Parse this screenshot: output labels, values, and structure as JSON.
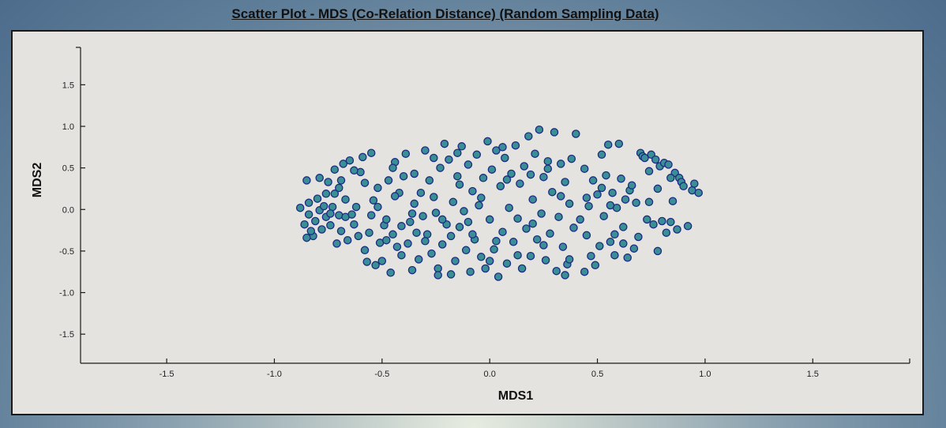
{
  "chart_data": {
    "type": "scatter",
    "title": "Scatter Plot - MDS (Co-Relation Distance) (Random Sampling Data)",
    "xlabel": "MDS1",
    "ylabel": "MDS2",
    "xlim": [
      -1.9,
      1.95
    ],
    "ylim": [
      -1.85,
      1.95
    ],
    "xticks": [
      -1.5,
      -1.0,
      -0.5,
      0.0,
      0.5,
      1.0,
      1.5
    ],
    "yticks": [
      1.5,
      1.0,
      0.5,
      0.0,
      -0.5,
      -1.0,
      -1.5
    ],
    "grid": false,
    "colors": {
      "marker_fill": "#3a8f96",
      "marker_edge": "#1c2a80"
    },
    "series": [
      {
        "points": [
          [
            -0.88,
            0.02
          ],
          [
            -0.86,
            -0.18
          ],
          [
            -0.85,
            0.35
          ],
          [
            -0.84,
            0.08
          ],
          [
            -0.84,
            -0.06
          ],
          [
            -0.82,
            -0.32
          ],
          [
            -0.81,
            -0.14
          ],
          [
            -0.8,
            0.13
          ],
          [
            -0.79,
            0.38
          ],
          [
            -0.79,
            -0.01
          ],
          [
            -0.78,
            -0.24
          ],
          [
            -0.77,
            0.04
          ],
          [
            -0.76,
            -0.09
          ],
          [
            -0.75,
            0.33
          ],
          [
            -0.74,
            -0.19
          ],
          [
            -0.73,
            0.03
          ],
          [
            -0.72,
            0.48
          ],
          [
            -0.72,
            0.19
          ],
          [
            -0.71,
            -0.41
          ],
          [
            -0.7,
            -0.07
          ],
          [
            -0.69,
            0.35
          ],
          [
            -0.69,
            -0.26
          ],
          [
            -0.68,
            0.55
          ],
          [
            -0.67,
            0.12
          ],
          [
            -0.67,
            -0.09
          ],
          [
            -0.66,
            -0.37
          ],
          [
            -0.65,
            0.59
          ],
          [
            -0.64,
            -0.06
          ],
          [
            -0.62,
            0.03
          ],
          [
            -0.61,
            -0.32
          ],
          [
            -0.6,
            0.45
          ],
          [
            -0.59,
            0.63
          ],
          [
            -0.58,
            0.32
          ],
          [
            -0.57,
            -0.63
          ],
          [
            -0.56,
            -0.28
          ],
          [
            -0.55,
            0.68
          ],
          [
            -0.54,
            0.11
          ],
          [
            -0.53,
            -0.67
          ],
          [
            -0.52,
            0.03
          ],
          [
            -0.51,
            -0.4
          ],
          [
            -0.5,
            -0.62
          ],
          [
            -0.49,
            -0.19
          ],
          [
            -0.48,
            -0.37
          ],
          [
            -0.47,
            0.35
          ],
          [
            -0.46,
            -0.76
          ],
          [
            -0.45,
            -0.3
          ],
          [
            -0.44,
            0.57
          ],
          [
            -0.43,
            -0.45
          ],
          [
            -0.42,
            0.2
          ],
          [
            -0.41,
            -0.2
          ],
          [
            -0.4,
            0.4
          ],
          [
            -0.39,
            0.67
          ],
          [
            -0.38,
            -0.41
          ],
          [
            -0.37,
            -0.15
          ],
          [
            -0.36,
            -0.73
          ],
          [
            -0.35,
            0.43
          ],
          [
            -0.34,
            -0.28
          ],
          [
            -0.33,
            -0.6
          ],
          [
            -0.32,
            0.2
          ],
          [
            -0.31,
            -0.08
          ],
          [
            -0.3,
            0.71
          ],
          [
            -0.29,
            -0.3
          ],
          [
            -0.28,
            0.35
          ],
          [
            -0.27,
            -0.53
          ],
          [
            -0.26,
            0.15
          ],
          [
            -0.25,
            -0.04
          ],
          [
            -0.24,
            -0.71
          ],
          [
            -0.23,
            0.5
          ],
          [
            -0.22,
            -0.42
          ],
          [
            -0.21,
            0.79
          ],
          [
            -0.2,
            -0.18
          ],
          [
            -0.19,
            0.6
          ],
          [
            -0.18,
            -0.32
          ],
          [
            -0.17,
            0.09
          ],
          [
            -0.16,
            -0.62
          ],
          [
            -0.15,
            0.4
          ],
          [
            -0.14,
            -0.21
          ],
          [
            -0.13,
            0.76
          ],
          [
            -0.12,
            -0.02
          ],
          [
            -0.11,
            -0.49
          ],
          [
            -0.1,
            0.54
          ],
          [
            -0.09,
            -0.75
          ],
          [
            -0.08,
            0.22
          ],
          [
            -0.07,
            -0.36
          ],
          [
            -0.06,
            0.66
          ],
          [
            -0.05,
            0.05
          ],
          [
            -0.04,
            -0.57
          ],
          [
            -0.03,
            0.38
          ],
          [
            -0.02,
            -0.71
          ],
          [
            -0.01,
            0.82
          ],
          [
            0.0,
            -0.12
          ],
          [
            0.01,
            0.48
          ],
          [
            0.02,
            -0.48
          ],
          [
            0.03,
            0.71
          ],
          [
            0.04,
            -0.81
          ],
          [
            0.05,
            0.28
          ],
          [
            0.06,
            -0.27
          ],
          [
            0.07,
            0.62
          ],
          [
            0.08,
            -0.65
          ],
          [
            0.09,
            0.02
          ],
          [
            0.1,
            0.43
          ],
          [
            0.11,
            -0.39
          ],
          [
            0.12,
            0.77
          ],
          [
            0.13,
            -0.11
          ],
          [
            0.14,
            0.31
          ],
          [
            0.15,
            -0.71
          ],
          [
            0.16,
            0.52
          ],
          [
            0.17,
            -0.23
          ],
          [
            0.18,
            0.88
          ],
          [
            0.19,
            -0.56
          ],
          [
            0.2,
            0.12
          ],
          [
            0.21,
            0.67
          ],
          [
            0.22,
            -0.36
          ],
          [
            0.23,
            0.96
          ],
          [
            0.24,
            -0.05
          ],
          [
            0.25,
            0.39
          ],
          [
            0.26,
            -0.61
          ],
          [
            0.27,
            0.58
          ],
          [
            0.28,
            -0.29
          ],
          [
            0.29,
            0.21
          ],
          [
            0.3,
            0.93
          ],
          [
            0.31,
            -0.74
          ],
          [
            0.32,
            -0.09
          ],
          [
            0.33,
            0.55
          ],
          [
            0.34,
            -0.45
          ],
          [
            0.35,
            0.33
          ],
          [
            0.36,
            -0.66
          ],
          [
            0.37,
            0.07
          ],
          [
            0.38,
            0.61
          ],
          [
            0.39,
            -0.22
          ],
          [
            0.4,
            0.91
          ],
          [
            0.42,
            -0.12
          ],
          [
            0.44,
            0.49
          ],
          [
            0.45,
            -0.31
          ],
          [
            0.46,
            0.04
          ],
          [
            0.47,
            -0.56
          ],
          [
            0.48,
            0.35
          ],
          [
            0.49,
            -0.67
          ],
          [
            0.5,
            0.18
          ],
          [
            0.51,
            -0.44
          ],
          [
            0.52,
            0.26
          ],
          [
            0.53,
            -0.08
          ],
          [
            0.54,
            0.41
          ],
          [
            0.55,
            0.78
          ],
          [
            0.56,
            -0.39
          ],
          [
            0.57,
            0.2
          ],
          [
            0.58,
            -0.55
          ],
          [
            0.59,
            0.02
          ],
          [
            0.6,
            0.79
          ],
          [
            0.61,
            0.37
          ],
          [
            0.62,
            -0.21
          ],
          [
            0.63,
            0.12
          ],
          [
            0.64,
            -0.58
          ],
          [
            0.65,
            0.23
          ],
          [
            0.67,
            -0.47
          ],
          [
            0.68,
            0.08
          ],
          [
            0.69,
            -0.33
          ],
          [
            0.7,
            0.68
          ],
          [
            0.71,
            0.64
          ],
          [
            0.72,
            0.62
          ],
          [
            0.73,
            -0.12
          ],
          [
            0.74,
            0.46
          ],
          [
            0.75,
            0.66
          ],
          [
            0.76,
            -0.18
          ],
          [
            0.77,
            0.6
          ],
          [
            0.78,
            -0.5
          ],
          [
            0.79,
            0.52
          ],
          [
            0.8,
            -0.14
          ],
          [
            0.81,
            0.56
          ],
          [
            0.82,
            -0.28
          ],
          [
            0.83,
            0.54
          ],
          [
            0.84,
            -0.15
          ],
          [
            0.85,
            0.1
          ],
          [
            0.86,
            0.44
          ],
          [
            0.87,
            -0.24
          ],
          [
            0.88,
            0.38
          ],
          [
            0.89,
            0.33
          ],
          [
            0.9,
            0.28
          ],
          [
            0.92,
            -0.2
          ],
          [
            0.94,
            0.23
          ],
          [
            0.95,
            0.31
          ],
          [
            0.97,
            0.2
          ],
          [
            -0.83,
            -0.26
          ],
          [
            -0.76,
            0.19
          ],
          [
            -0.74,
            -0.05
          ],
          [
            -0.7,
            0.26
          ],
          [
            -0.63,
            -0.18
          ],
          [
            -0.58,
            -0.49
          ],
          [
            -0.55,
            -0.07
          ],
          [
            -0.52,
            0.26
          ],
          [
            -0.44,
            0.16
          ],
          [
            -0.41,
            -0.55
          ],
          [
            -0.35,
            0.07
          ],
          [
            -0.3,
            -0.38
          ],
          [
            -0.26,
            0.62
          ],
          [
            -0.22,
            -0.12
          ],
          [
            -0.18,
            -0.78
          ],
          [
            -0.14,
            0.3
          ],
          [
            -0.08,
            -0.3
          ],
          [
            -0.04,
            0.14
          ],
          [
            0.03,
            -0.38
          ],
          [
            0.08,
            0.36
          ],
          [
            0.13,
            -0.55
          ],
          [
            0.19,
            0.42
          ],
          [
            0.25,
            -0.43
          ],
          [
            0.33,
            0.16
          ],
          [
            0.37,
            -0.6
          ],
          [
            0.44,
            -0.75
          ],
          [
            0.52,
            0.66
          ],
          [
            0.58,
            -0.3
          ],
          [
            0.66,
            0.29
          ],
          [
            0.74,
            0.09
          ],
          [
            0.84,
            0.38
          ],
          [
            -0.48,
            -0.12
          ],
          [
            0.0,
            -0.62
          ],
          [
            0.27,
            0.49
          ],
          [
            -0.15,
            0.68
          ],
          [
            0.62,
            -0.41
          ],
          [
            0.45,
            0.14
          ],
          [
            -0.36,
            -0.05
          ],
          [
            0.06,
            0.75
          ],
          [
            -0.63,
            0.47
          ],
          [
            0.78,
            0.25
          ],
          [
            -0.85,
            -0.34
          ],
          [
            0.35,
            -0.79
          ],
          [
            -0.24,
            -0.79
          ],
          [
            0.2,
            -0.17
          ],
          [
            -0.1,
            -0.15
          ],
          [
            0.56,
            0.05
          ],
          [
            -0.45,
            0.5
          ]
        ]
      }
    ]
  }
}
